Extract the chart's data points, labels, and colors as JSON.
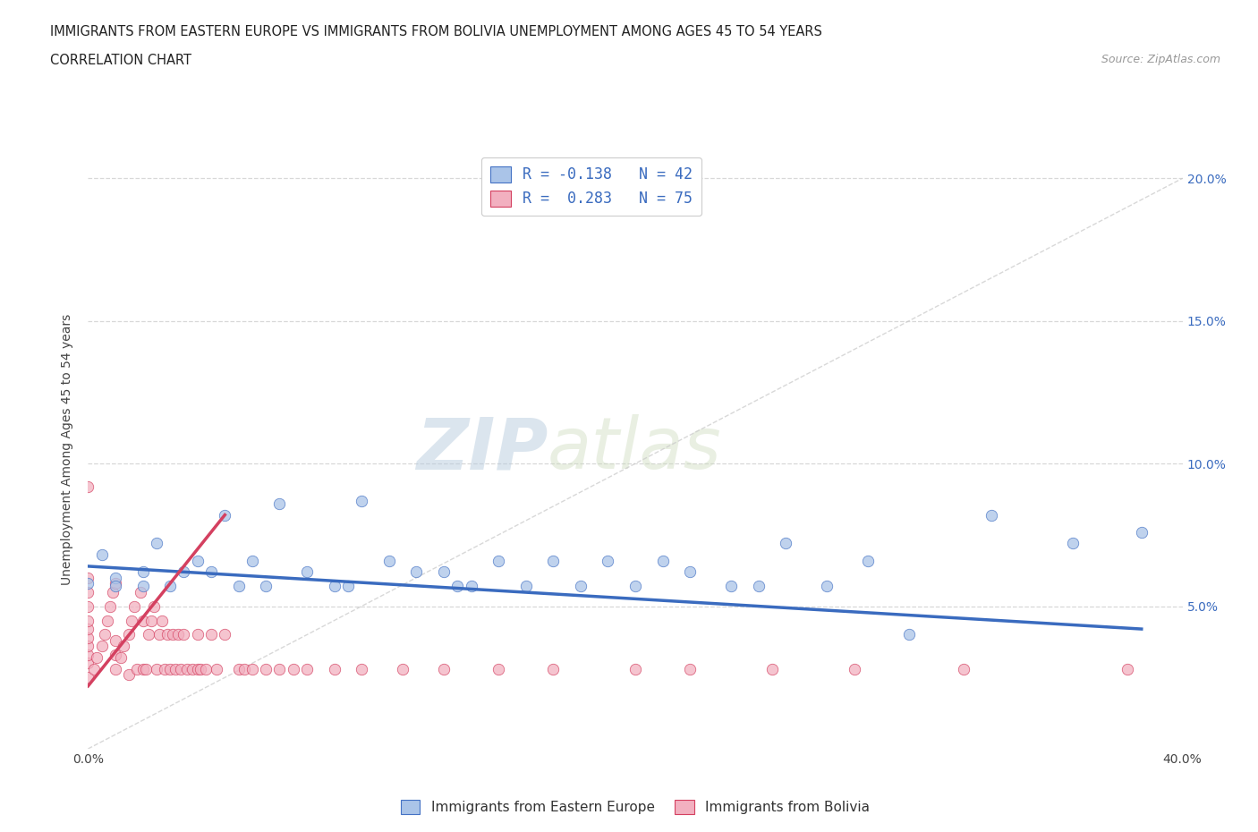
{
  "title_line1": "IMMIGRANTS FROM EASTERN EUROPE VS IMMIGRANTS FROM BOLIVIA UNEMPLOYMENT AMONG AGES 45 TO 54 YEARS",
  "title_line2": "CORRELATION CHART",
  "source_text": "Source: ZipAtlas.com",
  "ylabel": "Unemployment Among Ages 45 to 54 years",
  "xlim": [
    0.0,
    0.4
  ],
  "ylim": [
    0.0,
    0.21
  ],
  "ytick_positions": [
    0.05,
    0.1,
    0.15,
    0.2
  ],
  "ytick_labels": [
    "5.0%",
    "10.0%",
    "15.0%",
    "20.0%"
  ],
  "watermark_part1": "ZIP",
  "watermark_part2": "atlas",
  "blue_R": -0.138,
  "pink_R": 0.283,
  "blue_N": 42,
  "pink_N": 75,
  "blue_scatter_x": [
    0.0,
    0.005,
    0.01,
    0.01,
    0.02,
    0.02,
    0.025,
    0.03,
    0.035,
    0.04,
    0.045,
    0.05,
    0.055,
    0.06,
    0.065,
    0.07,
    0.08,
    0.09,
    0.095,
    0.1,
    0.11,
    0.12,
    0.13,
    0.135,
    0.14,
    0.15,
    0.16,
    0.17,
    0.18,
    0.19,
    0.2,
    0.21,
    0.22,
    0.235,
    0.245,
    0.255,
    0.27,
    0.285,
    0.3,
    0.33,
    0.36,
    0.385
  ],
  "blue_scatter_y": [
    0.058,
    0.068,
    0.06,
    0.057,
    0.057,
    0.062,
    0.072,
    0.057,
    0.062,
    0.066,
    0.062,
    0.082,
    0.057,
    0.066,
    0.057,
    0.086,
    0.062,
    0.057,
    0.057,
    0.087,
    0.066,
    0.062,
    0.062,
    0.057,
    0.057,
    0.066,
    0.057,
    0.066,
    0.057,
    0.066,
    0.057,
    0.066,
    0.062,
    0.057,
    0.057,
    0.072,
    0.057,
    0.066,
    0.04,
    0.082,
    0.072,
    0.076
  ],
  "pink_scatter_x": [
    0.0,
    0.0,
    0.0,
    0.0,
    0.0,
    0.0,
    0.0,
    0.0,
    0.0,
    0.0,
    0.0,
    0.002,
    0.003,
    0.005,
    0.006,
    0.007,
    0.008,
    0.009,
    0.01,
    0.01,
    0.01,
    0.01,
    0.012,
    0.013,
    0.015,
    0.015,
    0.016,
    0.017,
    0.018,
    0.019,
    0.02,
    0.02,
    0.021,
    0.022,
    0.023,
    0.024,
    0.025,
    0.026,
    0.027,
    0.028,
    0.029,
    0.03,
    0.031,
    0.032,
    0.033,
    0.034,
    0.035,
    0.036,
    0.038,
    0.04,
    0.04,
    0.041,
    0.043,
    0.045,
    0.047,
    0.05,
    0.055,
    0.057,
    0.06,
    0.065,
    0.07,
    0.075,
    0.08,
    0.09,
    0.1,
    0.115,
    0.13,
    0.15,
    0.17,
    0.2,
    0.22,
    0.25,
    0.28,
    0.32,
    0.38
  ],
  "pink_scatter_y": [
    0.025,
    0.03,
    0.033,
    0.036,
    0.039,
    0.042,
    0.045,
    0.05,
    0.055,
    0.06,
    0.092,
    0.028,
    0.032,
    0.036,
    0.04,
    0.045,
    0.05,
    0.055,
    0.028,
    0.033,
    0.038,
    0.058,
    0.032,
    0.036,
    0.026,
    0.04,
    0.045,
    0.05,
    0.028,
    0.055,
    0.028,
    0.045,
    0.028,
    0.04,
    0.045,
    0.05,
    0.028,
    0.04,
    0.045,
    0.028,
    0.04,
    0.028,
    0.04,
    0.028,
    0.04,
    0.028,
    0.04,
    0.028,
    0.028,
    0.028,
    0.04,
    0.028,
    0.028,
    0.04,
    0.028,
    0.04,
    0.028,
    0.028,
    0.028,
    0.028,
    0.028,
    0.028,
    0.028,
    0.028,
    0.028,
    0.028,
    0.028,
    0.028,
    0.028,
    0.028,
    0.028,
    0.028,
    0.028,
    0.028,
    0.028
  ],
  "blue_line_x": [
    0.0,
    0.385
  ],
  "blue_line_y": [
    0.064,
    0.042
  ],
  "pink_line_x": [
    0.0,
    0.05
  ],
  "pink_line_y": [
    0.022,
    0.082
  ],
  "blue_line_color": "#3a6bbf",
  "pink_line_color": "#d44060",
  "diagonal_line_color": "#c8c8c8",
  "scatter_blue_face": "#aac4e8",
  "scatter_blue_edge": "#4472c4",
  "scatter_pink_face": "#f2b0c0",
  "scatter_pink_edge": "#d44060",
  "background_color": "#ffffff",
  "grid_color": "#d8d8d8",
  "title_color": "#222222",
  "source_color": "#999999",
  "ylabel_color": "#444444",
  "ytick_color": "#3a6bbf",
  "legend_label_color": "#3a6bbf",
  "legend_stat_label1": "R = -0.138   N = 42",
  "legend_stat_label2": "R =  0.283   N = 75",
  "legend_bottom_label1": "Immigrants from Eastern Europe",
  "legend_bottom_label2": "Immigrants from Bolivia"
}
